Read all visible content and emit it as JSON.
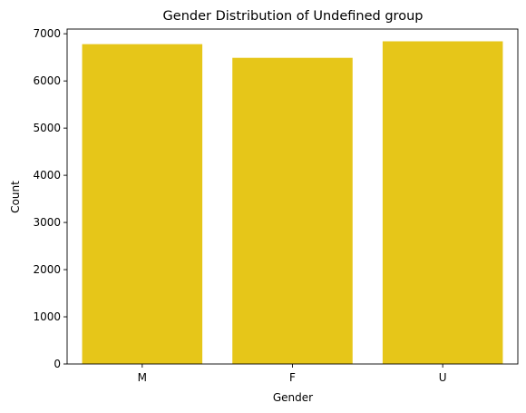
{
  "chart_data": {
    "type": "bar",
    "title": "Gender Distribution of Undefined group",
    "xlabel": "Gender",
    "ylabel": "Count",
    "categories": [
      "M",
      "F",
      "U"
    ],
    "values": [
      6780,
      6490,
      6840
    ],
    "ylim": [
      0,
      7100
    ],
    "yticks": [
      0,
      1000,
      2000,
      3000,
      4000,
      5000,
      6000,
      7000
    ],
    "bar_color": "#e6c619",
    "grid": false,
    "legend": "none"
  }
}
